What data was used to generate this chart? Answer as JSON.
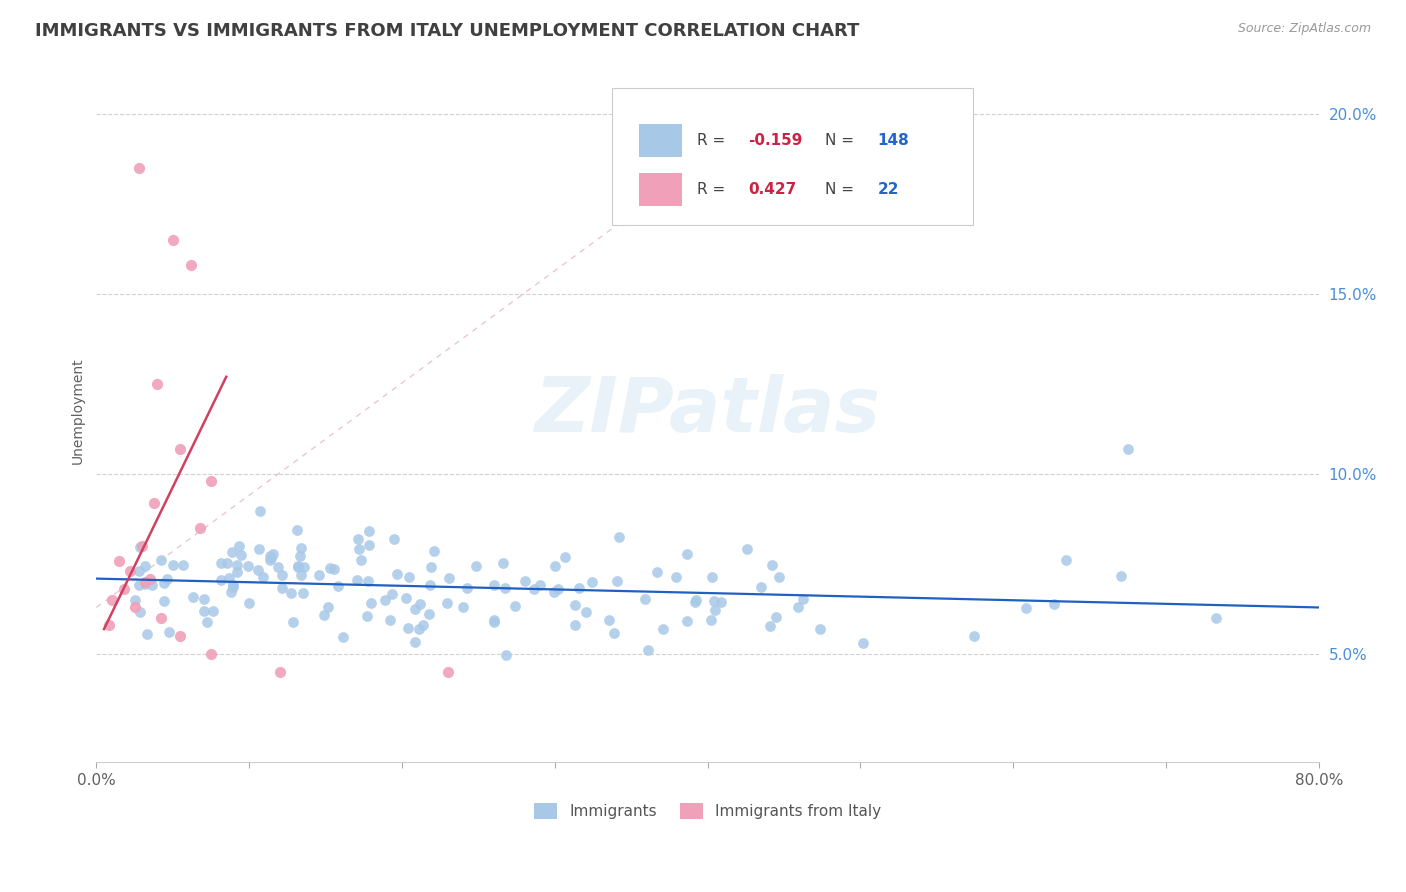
{
  "title": "IMMIGRANTS VS IMMIGRANTS FROM ITALY UNEMPLOYMENT CORRELATION CHART",
  "source": "Source: ZipAtlas.com",
  "ylabel": "Unemployment",
  "watermark": "ZIPatlas",
  "xlim": [
    0.0,
    0.8
  ],
  "ylim": [
    0.02,
    0.215
  ],
  "blue_color": "#a8c8e8",
  "pink_color": "#f0a0b8",
  "blue_line_color": "#2060c0",
  "pink_line_color": "#d04060",
  "background_color": "#ffffff",
  "grid_color": "#cccccc",
  "title_color": "#404040",
  "title_fontsize": 13,
  "axis_label_color": "#606060",
  "legend_R1": "-0.159",
  "legend_N1": "148",
  "legend_R2": "0.427",
  "legend_N2": "22",
  "legend_label1": "Immigrants",
  "legend_label2": "Immigrants from Italy"
}
